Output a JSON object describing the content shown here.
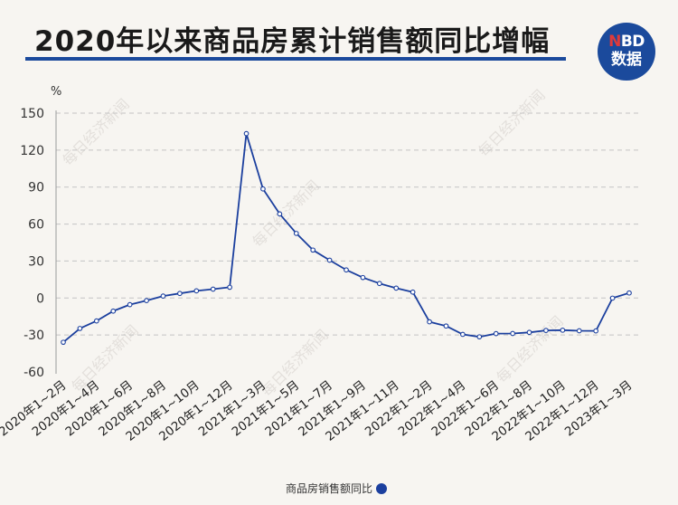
{
  "header": {
    "title": "2020年以来商品房累计销售额同比增幅"
  },
  "logo": {
    "line1_n": "N",
    "line1_rest": "BD",
    "line2": "数据"
  },
  "watermark": "每日经济新闻",
  "colors": {
    "accent": "#1b4a9c",
    "series": "#1b3f9e",
    "background": "#f7f5f1"
  },
  "chart_data": {
    "type": "line",
    "ylabel": "%",
    "ylim": [
      -60,
      150
    ],
    "yticks": [
      -60,
      -30,
      0,
      30,
      60,
      90,
      120,
      150
    ],
    "grid": true,
    "legend_position": "bottom-center",
    "x": [
      "2020年1~2月",
      "2020年1~3月",
      "2020年1~4月",
      "2020年1~5月",
      "2020年1~6月",
      "2020年1~7月",
      "2020年1~8月",
      "2020年1~9月",
      "2020年1~10月",
      "2020年1~11月",
      "2020年1~12月",
      "2021年1~2月",
      "2021年1~3月",
      "2021年1~4月",
      "2021年1~5月",
      "2021年1~6月",
      "2021年1~7月",
      "2021年1~8月",
      "2021年1~9月",
      "2021年1~10月",
      "2021年1~11月",
      "2021年1~12月",
      "2022年1~2月",
      "2022年1~3月",
      "2022年1~4月",
      "2022年1~5月",
      "2022年1~6月",
      "2022年1~7月",
      "2022年1~8月",
      "2022年1~9月",
      "2022年1~10月",
      "2022年1~11月",
      "2022年1~12月",
      "2023年1~2月",
      "2023年1~3月"
    ],
    "tick_labels": [
      "2020年1~2月",
      "2020年1~4月",
      "2020年1~6月",
      "2020年1~8月",
      "2020年1~10月",
      "2020年1~12月",
      "2021年1~3月",
      "2021年1~5月",
      "2021年1~7月",
      "2021年1~9月",
      "2021年1~11月",
      "2022年1~2月",
      "2022年1~4月",
      "2022年1~6月",
      "2022年1~8月",
      "2022年1~10月",
      "2022年1~12月",
      "2023年1~3月"
    ],
    "series": [
      {
        "name": "商品房销售额同比",
        "values": [
          -35.9,
          -24.7,
          -18.6,
          -10.6,
          -5.4,
          -2.1,
          1.6,
          3.7,
          5.8,
          7.2,
          8.7,
          133.4,
          88.5,
          68.2,
          52.4,
          38.9,
          30.7,
          22.8,
          16.6,
          11.8,
          8.0,
          4.8,
          -19.3,
          -22.7,
          -29.5,
          -31.5,
          -28.9,
          -28.8,
          -27.9,
          -26.3,
          -26.1,
          -26.6,
          -26.7,
          -0.1,
          4.1
        ]
      }
    ]
  }
}
